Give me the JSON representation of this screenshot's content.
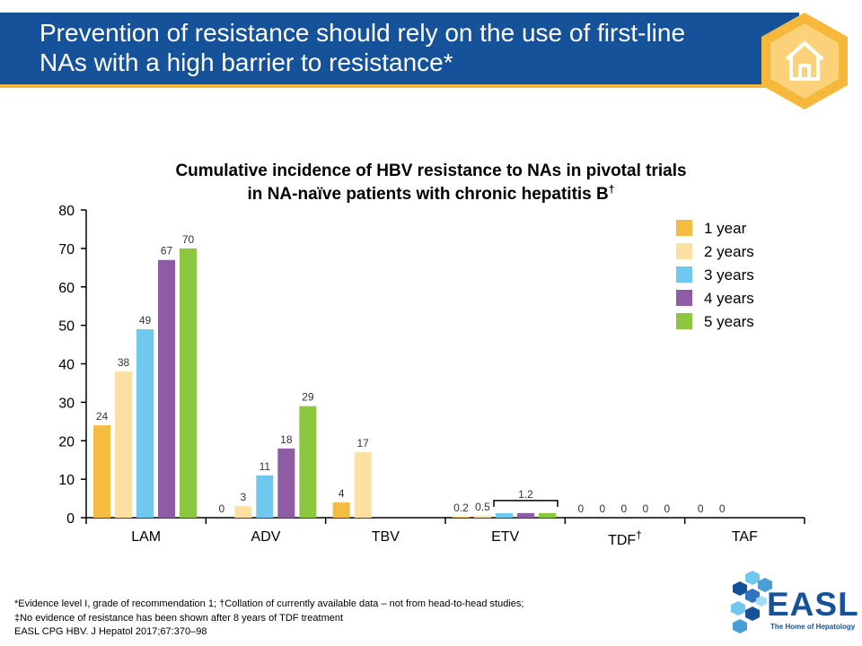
{
  "slide": {
    "title": "Prevention of resistance should rely on the use of first-line NAs with a high barrier to resistance*",
    "home_icon": "home-icon",
    "footnotes": {
      "line1": "*Evidence level I, grade of recommendation 1; †Collation of currently available data – not from head-to-head studies;",
      "line2": "‡No evidence of resistance has been shown after 8 years of TDF treatment",
      "line3": "EASL CPG HBV. J Hepatol 2017;67:370–98"
    },
    "logo": {
      "text": "EASL",
      "tagline": "The Home of Hepatology",
      "tm": "™"
    },
    "colors": {
      "banner": "#15529a",
      "accent": "#f5b83a"
    }
  },
  "chart_data": {
    "type": "bar",
    "title_line1": "Cumulative incidence of HBV resistance to NAs in pivotal trials",
    "title_line2": "in NA-naïve patients with chronic hepatitis B",
    "title_sup": "†",
    "categories": [
      "LAM",
      "ADV",
      "TBV",
      "ETV",
      "TDF",
      "TAF"
    ],
    "category_sup": [
      "",
      "",
      "",
      "",
      "†",
      ""
    ],
    "ylim": [
      0,
      80
    ],
    "yticks": [
      0,
      10,
      20,
      30,
      40,
      50,
      60,
      70,
      80
    ],
    "legend_position": "top-right",
    "series": [
      {
        "name": "1 year",
        "color": "#f5bc42",
        "values": [
          24,
          0,
          4,
          0.2,
          0,
          0
        ]
      },
      {
        "name": "2 years",
        "color": "#fbdfa3",
        "values": [
          38,
          3,
          17,
          0.5,
          0,
          0
        ]
      },
      {
        "name": "3 years",
        "color": "#70c8ef",
        "values": [
          49,
          11,
          null,
          1.2,
          0,
          null
        ]
      },
      {
        "name": "4 years",
        "color": "#8d5ca5",
        "values": [
          67,
          18,
          null,
          1.2,
          0,
          null
        ]
      },
      {
        "name": "5 years",
        "color": "#8dc63f",
        "values": [
          70,
          29,
          null,
          1.2,
          0,
          null
        ]
      }
    ],
    "data_labels": [
      [
        "24",
        "0",
        "4",
        "0.2",
        "0",
        "0"
      ],
      [
        "38",
        "3",
        "17",
        "0.5",
        "0",
        "0"
      ],
      [
        "49",
        "11",
        "",
        "",
        "0",
        ""
      ],
      [
        "67",
        "18",
        "",
        "",
        "0",
        ""
      ],
      [
        "70",
        "29",
        "",
        "",
        "0",
        ""
      ]
    ],
    "bracket_label": "1.2"
  }
}
